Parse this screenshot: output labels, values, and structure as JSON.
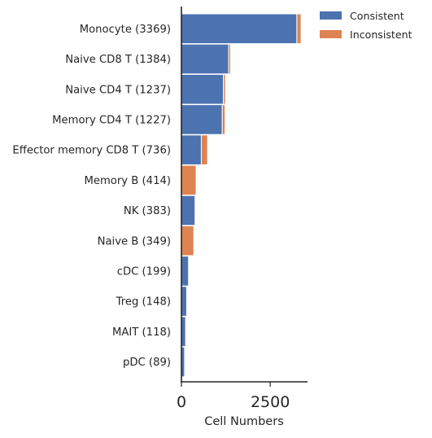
{
  "chart_data": {
    "type": "bar",
    "orientation": "horizontal",
    "stacked": true,
    "title": "",
    "xlabel": "Cell Numbers",
    "ylabel": "",
    "xlim": [
      0,
      3550
    ],
    "xticks": [
      {
        "value": 0,
        "label": "0"
      },
      {
        "value": 2500,
        "label": "2500"
      }
    ],
    "grid": false,
    "legend_position": "top-right, outside plot",
    "categories": [
      "Monocyte (3369)",
      "Naive CD8 T (1384)",
      "Naive CD4 T (1237)",
      "Memory CD4 T (1227)",
      "Effector memory CD8 T (736)",
      "Memory B (414)",
      "NK (383)",
      "Naive B (349)",
      "cDC (199)",
      "Treg (148)",
      "MAIT (118)",
      "pDC (89)"
    ],
    "series": [
      {
        "name": "Consistent",
        "color": "#4c72b0",
        "values": [
          3250,
          1330,
          1180,
          1150,
          560,
          0,
          383,
          0,
          199,
          148,
          118,
          89
        ]
      },
      {
        "name": "Inconsistent",
        "color": "#dd8452",
        "values": [
          119,
          54,
          57,
          77,
          176,
          414,
          0,
          349,
          0,
          0,
          0,
          0
        ]
      }
    ]
  }
}
